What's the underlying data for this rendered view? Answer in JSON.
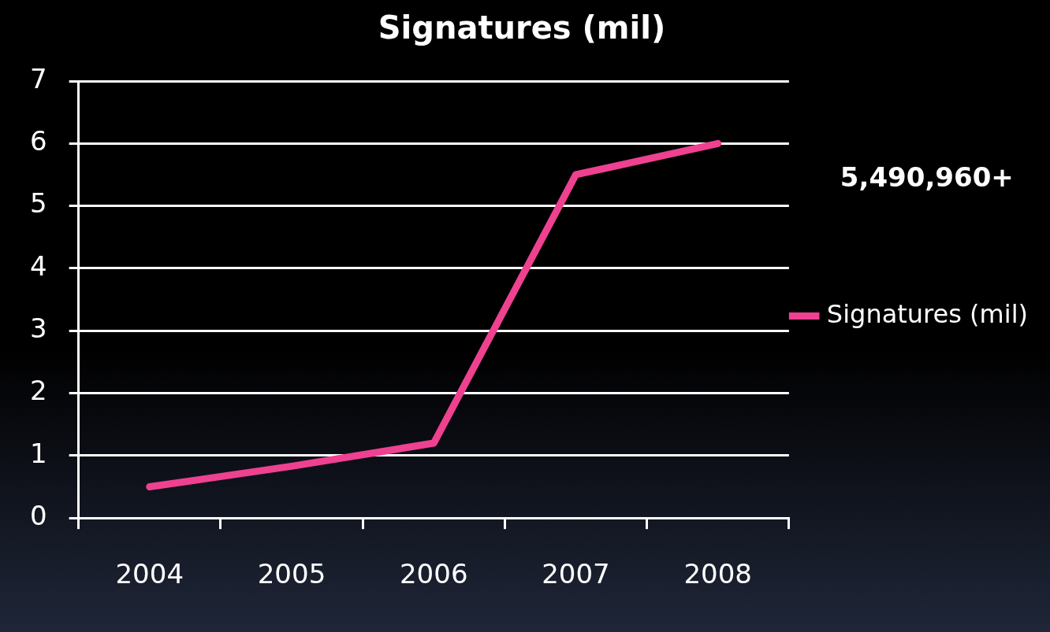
{
  "chart_data": {
    "type": "line",
    "title": "Signatures (mil)",
    "categories": [
      "2004",
      "2005",
      "2006",
      "2007",
      "2008"
    ],
    "series": [
      {
        "name": "Signatures (mil)",
        "color": "#ee4190",
        "values": [
          0.5,
          0.83,
          1.2,
          5.5,
          6.0
        ]
      }
    ],
    "ylim": [
      0,
      7
    ],
    "yticks": [
      0,
      1,
      2,
      3,
      4,
      5,
      6,
      7
    ],
    "grid": "y",
    "legend": "right",
    "marker": "none",
    "line_style": "solid",
    "annotations": [
      "5,490,960+"
    ]
  }
}
